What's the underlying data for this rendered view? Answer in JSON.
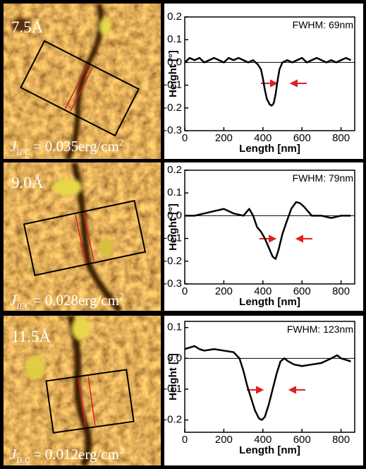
{
  "images": [
    {
      "label": "7.5Å",
      "symbol": "J",
      "subscript": "IEC",
      "energy": "= 0.035erg/cm",
      "superscript": "2"
    },
    {
      "label": "9.0Å",
      "symbol": "J",
      "subscript": "IEC",
      "energy": "= 0.028erg/cm",
      "superscript": "2"
    },
    {
      "label": "11.5Å",
      "symbol": "J",
      "subscript": "IEC",
      "energy": "= 0.012erg/cm",
      "superscript": "2"
    }
  ],
  "chart_data": [
    {
      "type": "line",
      "xlabel": "Length [nm]",
      "ylabel": "Height [°]",
      "annotation": "FWHM: 69nm",
      "color": "#000000",
      "x": [
        0,
        25,
        50,
        75,
        100,
        125,
        150,
        175,
        200,
        225,
        250,
        275,
        300,
        325,
        350,
        375,
        390,
        400,
        410,
        420,
        435,
        445,
        455,
        465,
        475,
        485,
        500,
        525,
        550,
        575,
        600,
        625,
        650,
        675,
        700,
        725,
        750,
        775,
        800,
        825,
        850
      ],
      "values": [
        0.0,
        0.02,
        0.01,
        0.02,
        0.0,
        0.01,
        0.02,
        0.01,
        0.0,
        0.02,
        0.01,
        0.02,
        0.01,
        0.0,
        0.01,
        -0.01,
        -0.03,
        -0.07,
        -0.12,
        -0.16,
        -0.185,
        -0.19,
        -0.18,
        -0.14,
        -0.08,
        -0.03,
        0.0,
        0.01,
        0.0,
        0.01,
        0.02,
        0.0,
        0.01,
        0.02,
        0.01,
        0.0,
        0.01,
        0.0,
        0.01,
        0.02,
        0.01
      ],
      "xlim": [
        0,
        870
      ],
      "xticks": [
        0,
        200,
        400,
        600,
        800
      ],
      "ylim": [
        -0.3,
        0.2
      ],
      "yticks": [
        -0.3,
        -0.2,
        -0.1,
        {
          "value": 0,
          "label": "0.0"
        },
        0.1,
        0.2
      ]
    },
    {
      "type": "line",
      "xlabel": "Length [nm]",
      "ylabel": "Height [°]",
      "annotation": "FWHM: 79nm",
      "color": "#000000",
      "x": [
        0,
        50,
        100,
        150,
        200,
        250,
        300,
        330,
        350,
        370,
        390,
        410,
        430,
        450,
        465,
        480,
        500,
        520,
        545,
        570,
        590,
        610,
        630,
        650,
        700,
        750,
        800,
        850
      ],
      "values": [
        0.0,
        0.0,
        0.01,
        0.02,
        0.03,
        0.01,
        0.0,
        0.03,
        0.0,
        -0.05,
        -0.07,
        -0.1,
        -0.14,
        -0.18,
        -0.19,
        -0.15,
        -0.08,
        -0.03,
        0.03,
        0.06,
        0.055,
        0.04,
        0.02,
        0.0,
        0.0,
        -0.01,
        0.0,
        0.0
      ],
      "xlim": [
        0,
        870
      ],
      "xticks": [
        0,
        200,
        400,
        600,
        800
      ],
      "ylim": [
        -0.3,
        0.2
      ],
      "yticks": [
        -0.3,
        -0.2,
        -0.1,
        {
          "value": 0,
          "label": "0.0"
        },
        0.1,
        0.2
      ]
    },
    {
      "type": "line",
      "xlabel": "Length [nm]",
      "ylabel": "Height [°]",
      "annotation": "FWHM: 123nm",
      "color": "#000000",
      "x": [
        0,
        25,
        50,
        75,
        100,
        150,
        200,
        250,
        280,
        300,
        320,
        340,
        360,
        380,
        395,
        410,
        430,
        450,
        470,
        490,
        510,
        530,
        560,
        600,
        650,
        700,
        750,
        780,
        800,
        850
      ],
      "values": [
        0.03,
        0.035,
        0.04,
        0.03,
        0.025,
        0.03,
        0.025,
        0.02,
        0.0,
        -0.04,
        -0.09,
        -0.13,
        -0.17,
        -0.195,
        -0.2,
        -0.19,
        -0.15,
        -0.1,
        -0.05,
        -0.01,
        0.0,
        -0.01,
        -0.02,
        -0.025,
        -0.02,
        -0.015,
        0.0,
        0.01,
        0.0,
        -0.01
      ],
      "xlim": [
        0,
        870
      ],
      "xticks": [
        0,
        200,
        400,
        600,
        800
      ],
      "ylim": [
        -0.24,
        0.12
      ],
      "yticks": [
        -0.2,
        -0.1,
        {
          "value": 0,
          "label": "0.0"
        },
        0.1
      ]
    }
  ]
}
